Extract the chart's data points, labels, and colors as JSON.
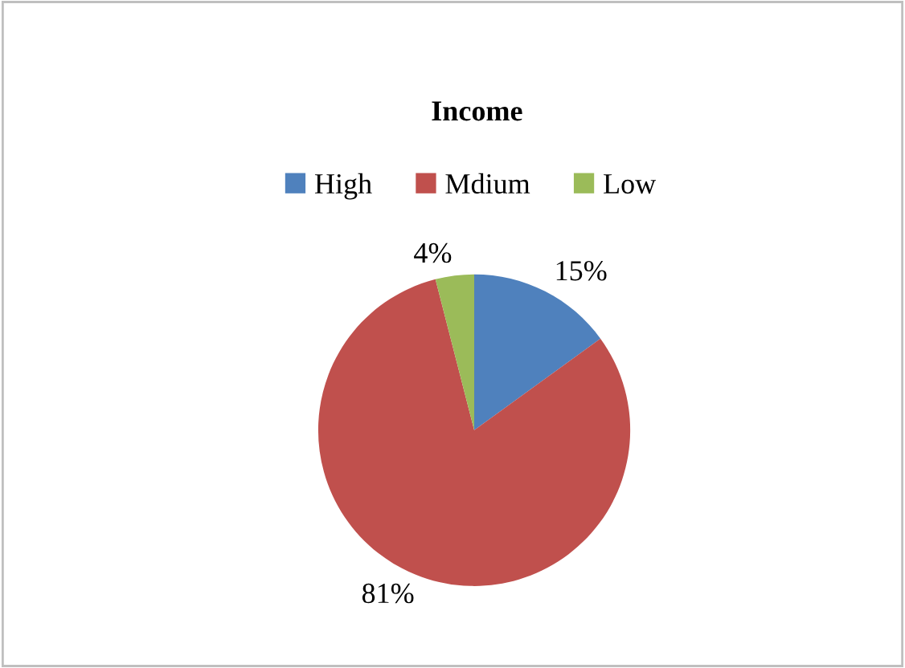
{
  "chart_data": {
    "type": "pie",
    "title": "Income",
    "categories": [
      "High",
      "Mdium",
      "Low"
    ],
    "values": [
      15,
      81,
      4
    ],
    "colors": [
      "#4f81bd",
      "#c0504d",
      "#9bbb59"
    ],
    "value_labels": [
      "15%",
      "81%",
      "4%"
    ],
    "legend": "top"
  }
}
